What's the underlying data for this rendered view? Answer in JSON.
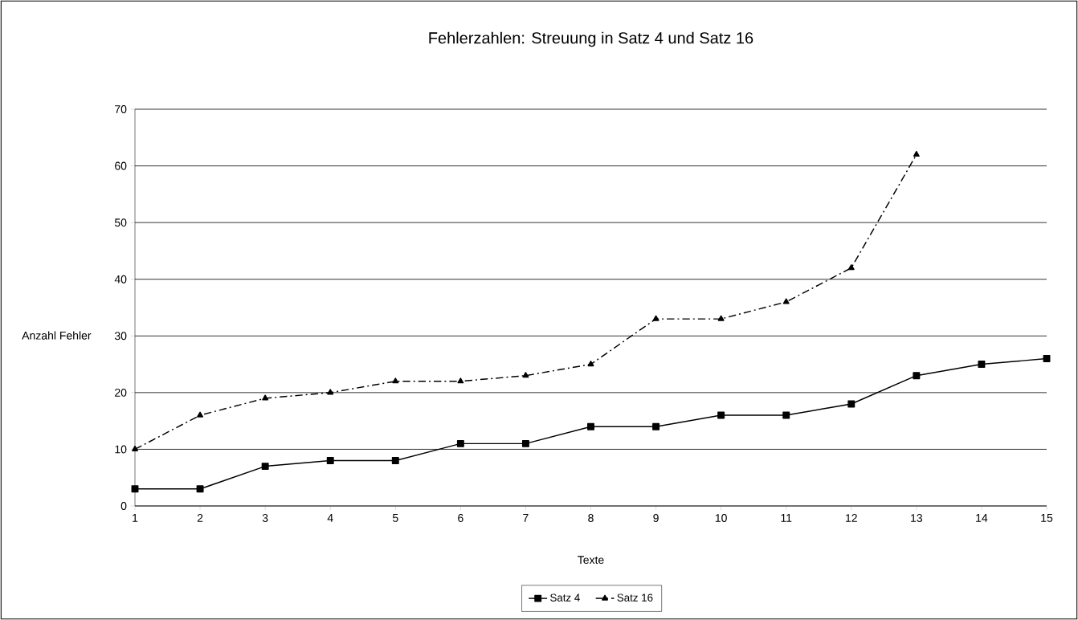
{
  "chart_data": {
    "type": "line",
    "title": "Fehlerzahlen: Streuung in Satz 4 und Satz 16",
    "xlabel": "Texte",
    "ylabel": "Anzahl Fehler",
    "categories": [
      "1",
      "2",
      "3",
      "4",
      "5",
      "6",
      "7",
      "8",
      "9",
      "10",
      "11",
      "12",
      "13",
      "14",
      "15"
    ],
    "series": [
      {
        "name": "Satz 4",
        "color": "#000000",
        "marker": "square",
        "line_style": "solid",
        "values": [
          3,
          3,
          7,
          8,
          8,
          11,
          11,
          14,
          14,
          16,
          16,
          18,
          23,
          25,
          26
        ]
      },
      {
        "name": "Satz 16",
        "color": "#000000",
        "marker": "triangle",
        "line_style": "dashed",
        "values": [
          10,
          16,
          19,
          20,
          22,
          22,
          23,
          25,
          33,
          33,
          36,
          42,
          62,
          null,
          null
        ]
      }
    ],
    "ylim": [
      0,
      70
    ],
    "yticks": [
      0,
      10,
      20,
      30,
      40,
      50,
      60,
      70
    ],
    "grid": "y",
    "legend": "bottom"
  }
}
